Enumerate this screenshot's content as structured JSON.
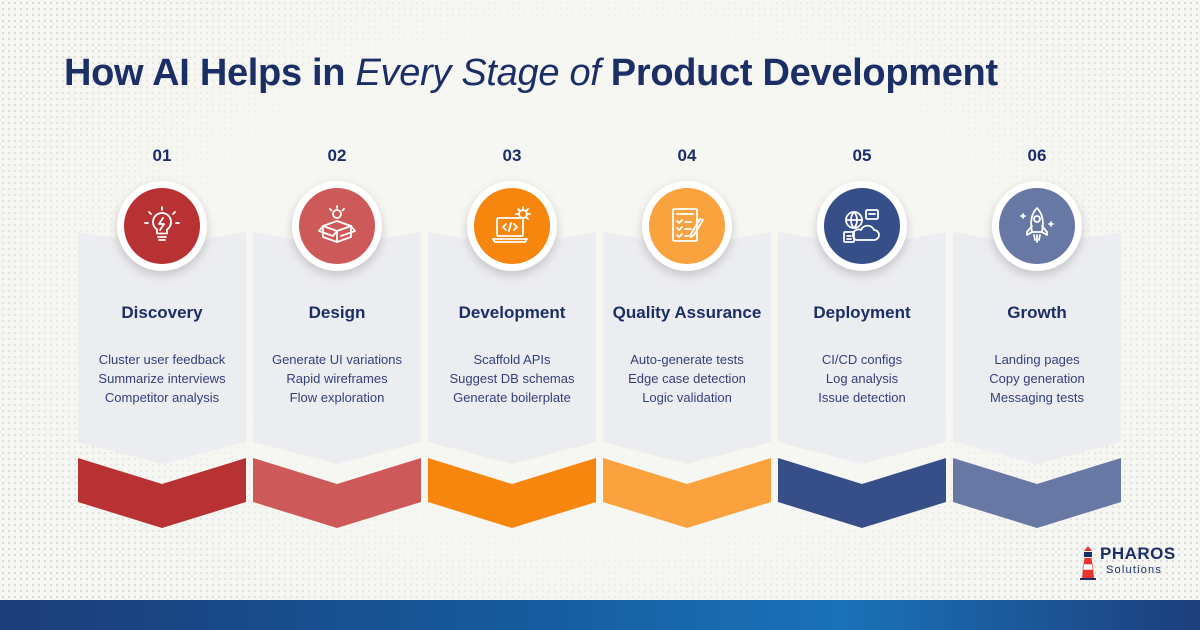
{
  "title": {
    "part1": "How AI Helps in ",
    "part2": "Every Stage of ",
    "part3": "Product Development"
  },
  "stages": [
    {
      "number": "01",
      "name": "Discovery",
      "icon": "lightbulb-icon",
      "color": "#b83234",
      "items": [
        "Cluster user feedback",
        "Summarize interviews",
        "Competitor analysis"
      ]
    },
    {
      "number": "02",
      "name": "Design",
      "icon": "idea-box-icon",
      "color": "#cd5a59",
      "items": [
        "Generate UI variations",
        "Rapid wireframes",
        "Flow exploration"
      ]
    },
    {
      "number": "03",
      "name": "Development",
      "icon": "laptop-code-gear-icon",
      "color": "#f7860f",
      "items": [
        "Scaffold APIs",
        "Suggest DB schemas",
        "Generate boilerplate"
      ]
    },
    {
      "number": "04",
      "name": "Quality Assurance",
      "icon": "checklist-pencil-icon",
      "color": "#f9a23e",
      "items": [
        "Auto-generate tests",
        "Edge case detection",
        "Logic validation"
      ]
    },
    {
      "number": "05",
      "name": "Deployment",
      "icon": "cloud-network-icon",
      "color": "#374f89",
      "items": [
        "CI/CD configs",
        "Log analysis",
        "Issue detection"
      ]
    },
    {
      "number": "06",
      "name": "Growth",
      "icon": "rocket-icon",
      "color": "#6878a5",
      "items": [
        "Landing pages",
        "Copy generation",
        "Messaging tests"
      ]
    }
  ],
  "logo": {
    "brand": "PHAROS",
    "sub": "Solutions",
    "icon": "lighthouse-icon",
    "accent": "#e8332f"
  },
  "colors": {
    "navy": "#1b2f66",
    "background": "#f6f6f2"
  }
}
